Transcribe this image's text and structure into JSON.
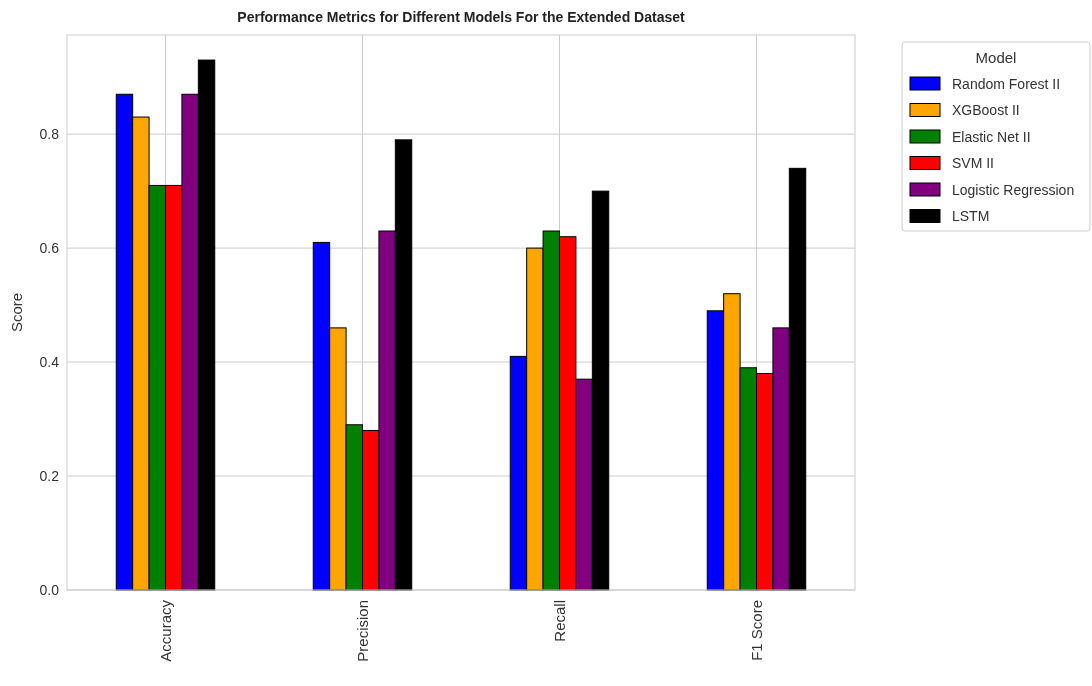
{
  "chart_data": {
    "type": "bar",
    "title": "Performance Metrics for Different Models For the Extended Dataset",
    "ylabel": "Score",
    "legend_title": "Model",
    "categories": [
      "Accuracy",
      "Precision",
      "Recall",
      "F1 Score"
    ],
    "series": [
      {
        "name": "Random Forest II",
        "color": "#0000ff",
        "values": [
          0.87,
          0.61,
          0.41,
          0.49
        ]
      },
      {
        "name": "XGBoost II",
        "color": "#ffa500",
        "values": [
          0.83,
          0.46,
          0.6,
          0.52
        ]
      },
      {
        "name": "Elastic Net II",
        "color": "#008000",
        "values": [
          0.71,
          0.29,
          0.63,
          0.39
        ]
      },
      {
        "name": "SVM II",
        "color": "#ff0000",
        "values": [
          0.71,
          0.28,
          0.62,
          0.38
        ]
      },
      {
        "name": "Logistic Regression",
        "color": "#800080",
        "values": [
          0.87,
          0.63,
          0.37,
          0.46
        ]
      },
      {
        "name": "LSTM",
        "color": "#000000",
        "values": [
          0.93,
          0.79,
          0.7,
          0.74
        ]
      }
    ],
    "ylim": [
      0,
      0.974
    ],
    "yticks": [
      {
        "value": 0,
        "label": "0.0"
      },
      0.2,
      0.4,
      0.6,
      0.8
    ],
    "grid": true,
    "legend": "top right"
  }
}
